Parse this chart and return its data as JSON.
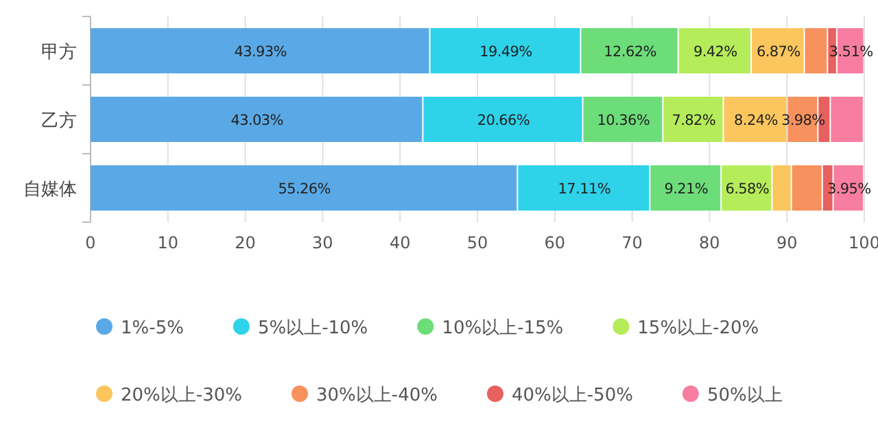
{
  "chart_data": {
    "type": "bar",
    "orientation": "horizontal",
    "stacked": true,
    "categories": [
      "甲方",
      "乙方",
      "自媒体"
    ],
    "xlim": [
      0,
      100
    ],
    "xticks": [
      0,
      10,
      20,
      30,
      40,
      50,
      60,
      70,
      80,
      90,
      100
    ],
    "grid": "x",
    "legend": "bottom",
    "series": [
      {
        "name": "1%-5%",
        "color": "#5aa9e6",
        "values": [
          43.93,
          43.03,
          55.26
        ],
        "value_labels": [
          "43.93%",
          "43.03%",
          "55.26%"
        ]
      },
      {
        "name": "5%以上-10%",
        "color": "#2ed3ea",
        "values": [
          19.49,
          20.66,
          17.11
        ],
        "value_labels": [
          "19.49%",
          "20.66%",
          "17.11%"
        ]
      },
      {
        "name": "10%以上-15%",
        "color": "#6ddd7a",
        "values": [
          12.62,
          10.36,
          9.21
        ],
        "value_labels": [
          "12.62%",
          "10.36%",
          "9.21%"
        ]
      },
      {
        "name": "15%以上-20%",
        "color": "#b5ec5a",
        "values": [
          9.42,
          7.82,
          6.58
        ],
        "value_labels": [
          "9.42%",
          "7.82%",
          "6.58%"
        ]
      },
      {
        "name": "20%以上-30%",
        "color": "#fcc65e",
        "values": [
          6.87,
          8.24,
          2.5
        ],
        "value_labels": [
          "6.87%",
          "8.24%",
          null
        ]
      },
      {
        "name": "30%以上-40%",
        "color": "#f7915e",
        "values": [
          3.0,
          3.98,
          4.0
        ],
        "value_labels": [
          null,
          "3.98%",
          null
        ]
      },
      {
        "name": "40%以上-50%",
        "color": "#e8605f",
        "values": [
          1.2,
          1.6,
          1.4
        ],
        "value_labels": [
          null,
          null,
          null
        ]
      },
      {
        "name": "50%以上",
        "color": "#f77ea0",
        "values": [
          3.51,
          4.3,
          3.95
        ],
        "value_labels": [
          "3.51%",
          null,
          "3.95%"
        ]
      }
    ]
  }
}
